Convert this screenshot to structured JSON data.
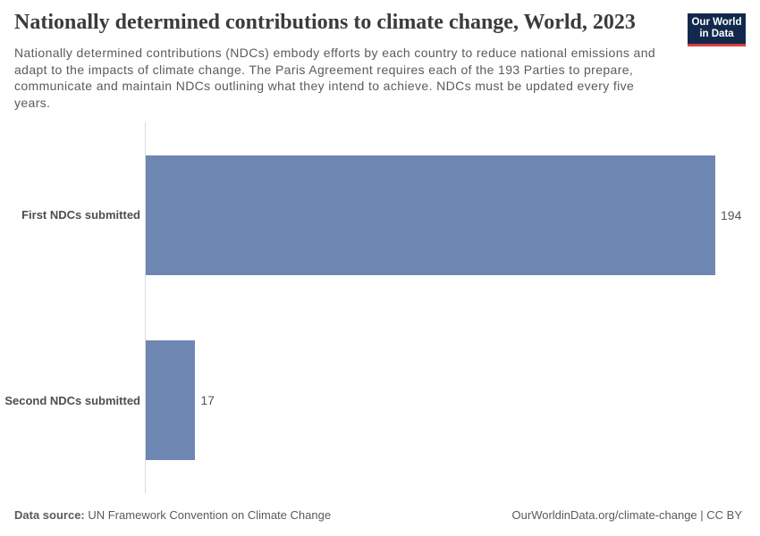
{
  "header": {
    "title": "Nationally determined contributions to climate change, World, 2023",
    "subtitle": "Nationally determined contributions (NDCs) embody efforts by each country to reduce national emissions and\nadapt to the impacts of climate change. The Paris Agreement requires each of the 193 Parties to prepare,\ncommunicate and maintain NDCs outlining what they intend to achieve. NDCs must be updated every five\nyears.",
    "logo": {
      "line1": "Our World",
      "line2": "in Data",
      "background_color": "#12294d",
      "accent_color": "#dc3e3e"
    }
  },
  "chart_data": {
    "type": "bar",
    "orientation": "horizontal",
    "title": "Nationally determined contributions to climate change, World, 2023",
    "categories": [
      "First NDCs submitted",
      "Second NDCs submitted"
    ],
    "values": [
      194,
      17
    ],
    "value_labels": [
      "194",
      "17"
    ],
    "xlim": [
      0,
      194
    ],
    "bar_color": "#6e87b2",
    "grid": false,
    "legend": false
  },
  "footer": {
    "source_label": "Data source:",
    "source_text": "UN Framework Convention on Climate Change",
    "credit": "OurWorldinData.org/climate-change | CC BY"
  }
}
